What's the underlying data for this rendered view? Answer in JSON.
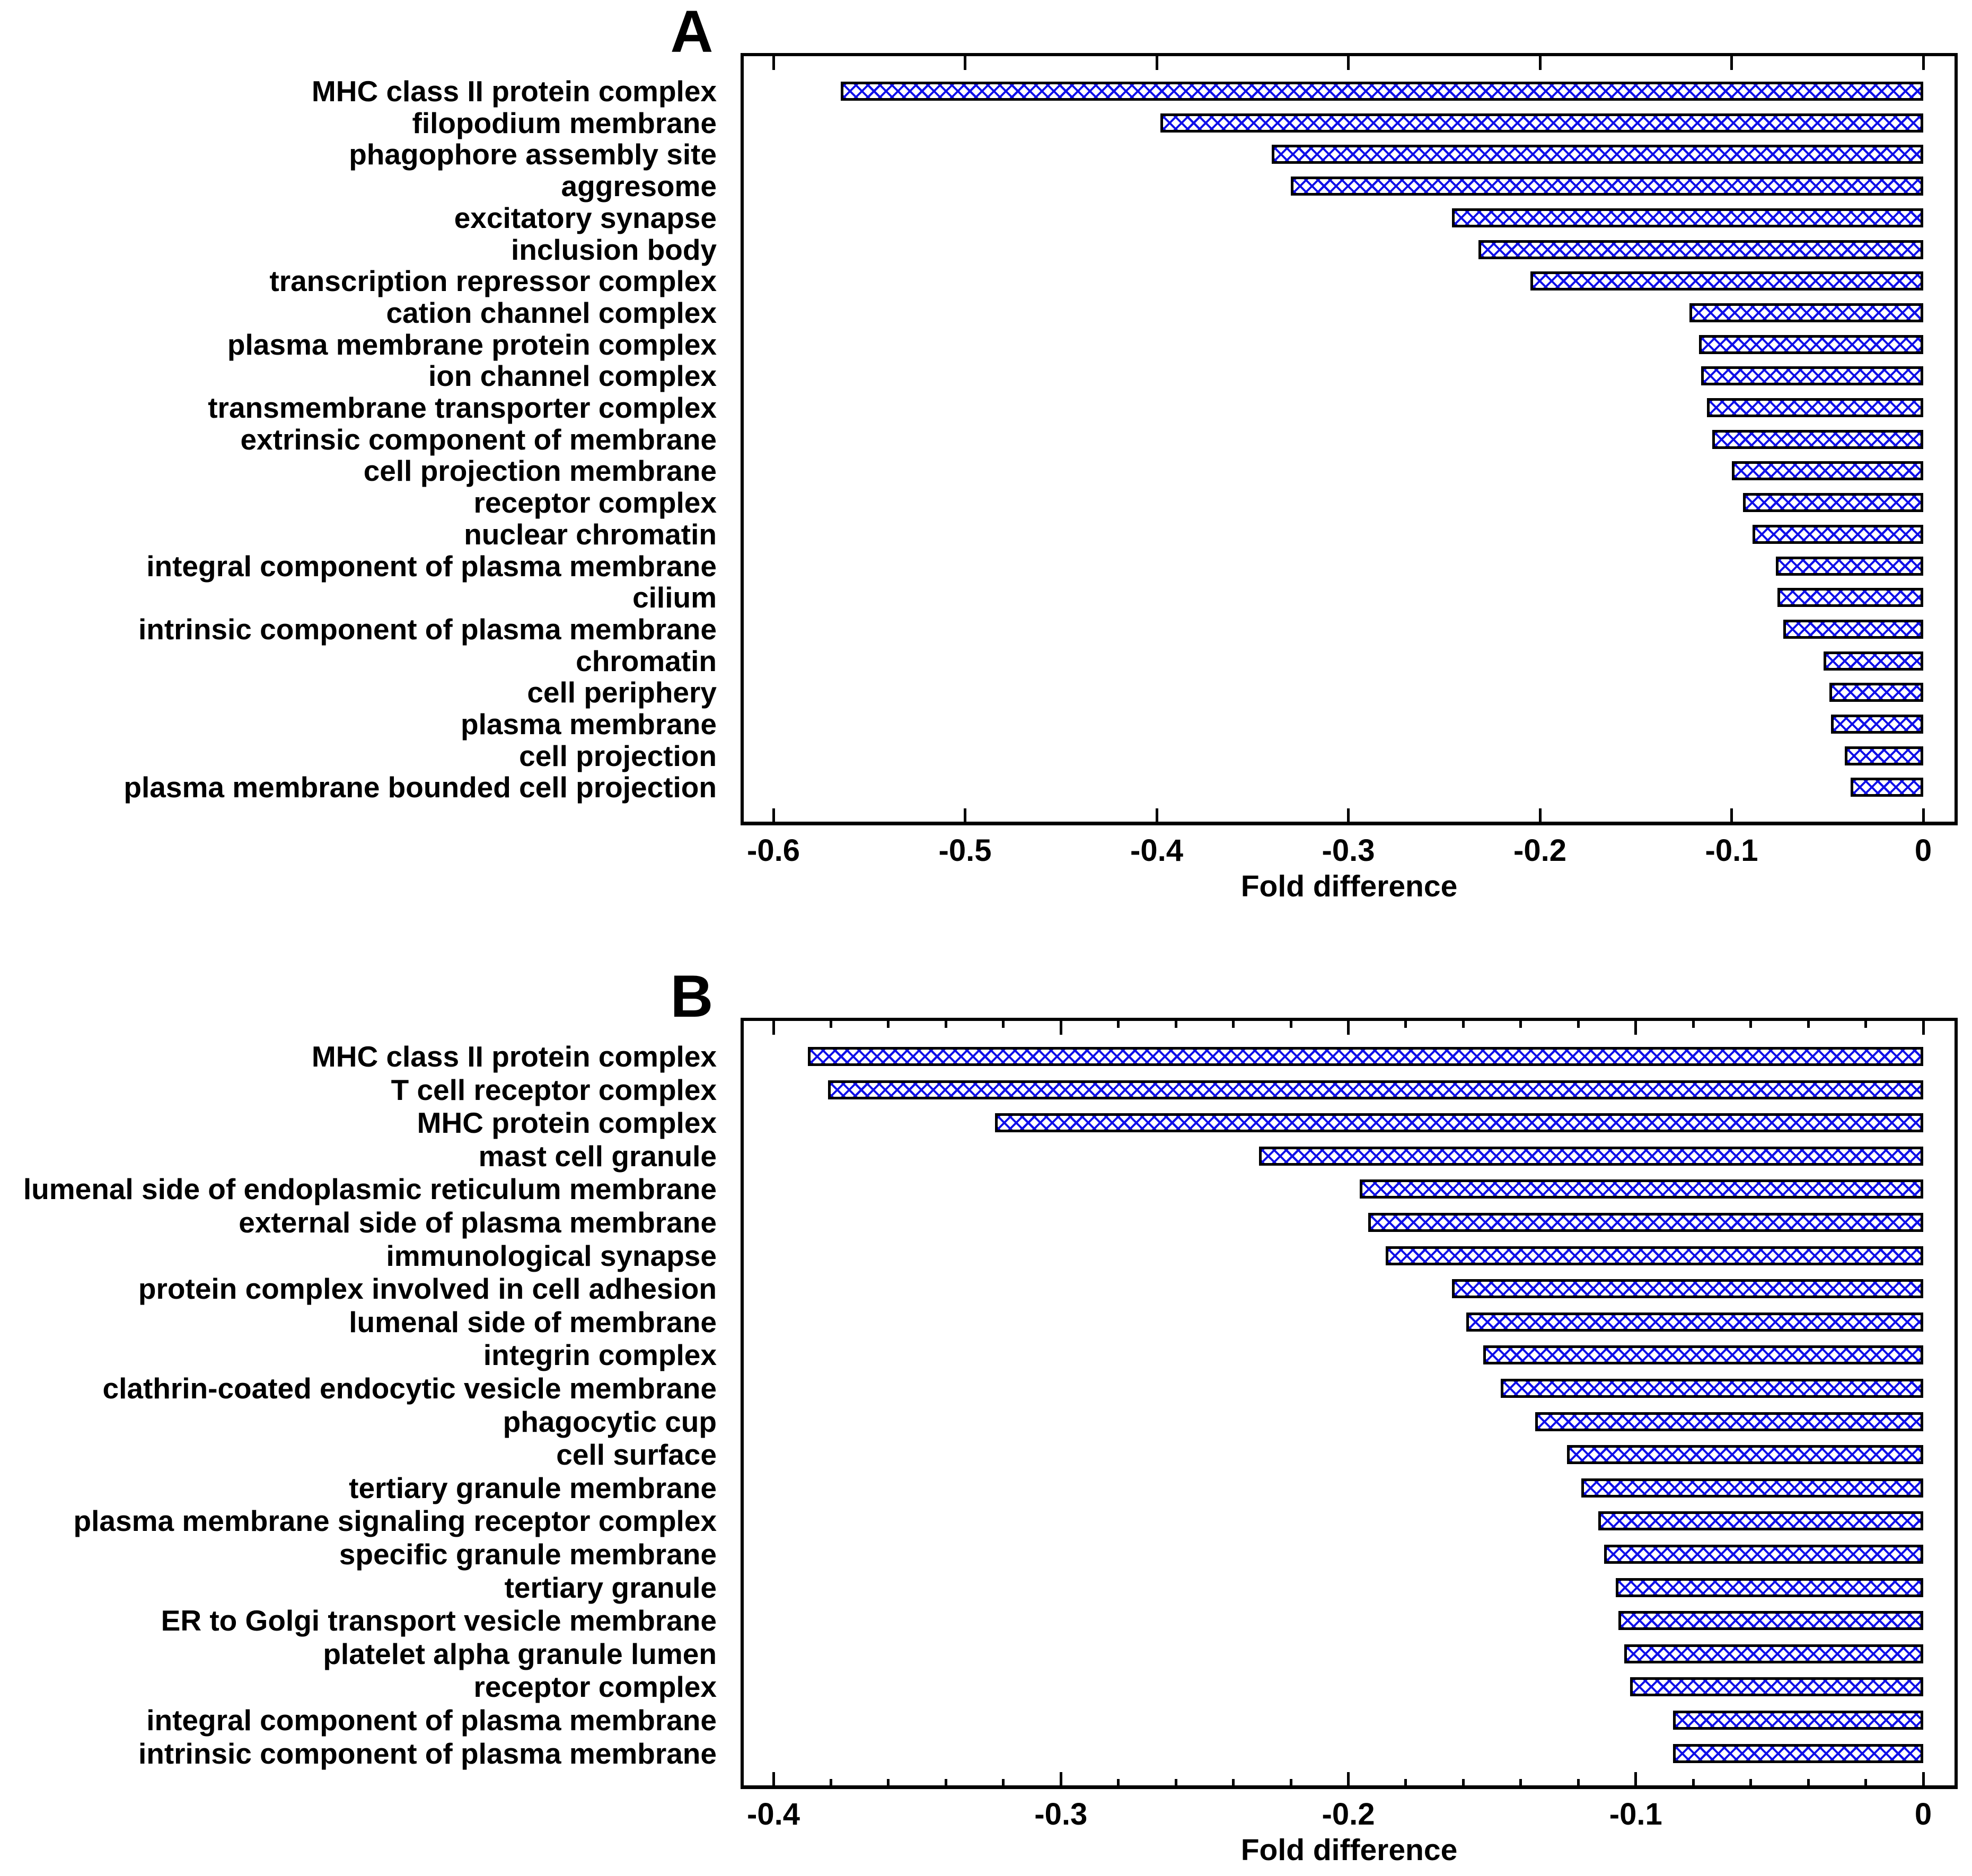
{
  "figure": {
    "background_color": "#ffffff",
    "axis_color": "#000000",
    "text_color": "#000000",
    "bar_border_color": "#000000",
    "bar_fill": "white with blue diagonal crosshatch pattern",
    "bar_pattern_color": "#0f0fe8"
  },
  "chart_data": [
    {
      "type": "bar",
      "orientation": "horizontal",
      "panel_label": "A",
      "title": "",
      "xlabel": "Fold difference",
      "ylabel": "",
      "xlim": [
        -0.6,
        0
      ],
      "grid": false,
      "legend": null,
      "x_major_ticks": [
        -0.6,
        -0.5,
        -0.4,
        -0.3,
        -0.2,
        -0.1,
        0
      ],
      "x_tick_labels": [
        "-0.6",
        "-0.5",
        "-0.4",
        "-0.3",
        "-0.2",
        "-0.1",
        "0"
      ],
      "x_minor_tick_step": null,
      "categories": [
        "MHC class II protein complex",
        "filopodium membrane",
        "phagophore assembly site",
        "aggresome",
        "excitatory synapse",
        "inclusion body",
        "transcription repressor complex",
        "cation channel complex",
        "plasma membrane protein complex",
        "ion channel complex",
        "transmembrane transporter complex",
        "extrinsic component of membrane",
        "cell projection membrane",
        "receptor complex",
        "nuclear chromatin",
        "integral component of plasma membrane",
        "cilium",
        "intrinsic component of plasma membrane",
        "chromatin",
        "cell periphery",
        "plasma membrane",
        "cell projection",
        "plasma membrane bounded cell projection"
      ],
      "values": [
        -0.565,
        -0.398,
        -0.34,
        -0.33,
        -0.246,
        -0.232,
        -0.205,
        -0.122,
        -0.117,
        -0.116,
        -0.113,
        -0.11,
        -0.1,
        -0.094,
        -0.089,
        -0.077,
        -0.076,
        -0.073,
        -0.052,
        -0.049,
        -0.048,
        -0.041,
        -0.038
      ]
    },
    {
      "type": "bar",
      "orientation": "horizontal",
      "panel_label": "B",
      "title": "",
      "xlabel": "Fold difference",
      "ylabel": "",
      "xlim": [
        -0.4,
        0
      ],
      "grid": false,
      "legend": null,
      "x_major_ticks": [
        -0.4,
        -0.3,
        -0.2,
        -0.1,
        0
      ],
      "x_tick_labels": [
        "-0.4",
        "-0.3",
        "-0.2",
        "-0.1",
        "0"
      ],
      "x_minor_tick_step": 0.02,
      "categories": [
        "MHC class II protein complex",
        "T cell receptor complex",
        "MHC protein complex",
        "mast cell granule",
        "lumenal side of endoplasmic reticulum membrane",
        "external side of plasma membrane",
        "immunological synapse",
        "protein complex involved in cell adhesion",
        "lumenal side of membrane",
        "integrin complex",
        "clathrin-coated endocytic vesicle membrane",
        "phagocytic cup",
        "cell surface",
        "tertiary granule membrane",
        "plasma membrane signaling receptor complex",
        "specific granule membrane",
        "tertiary granule",
        "ER to Golgi transport vesicle membrane",
        "platelet alpha granule lumen",
        "receptor complex",
        "integral component of plasma membrane",
        "intrinsic component of plasma membrane"
      ],
      "values": [
        -0.388,
        -0.381,
        -0.323,
        -0.231,
        -0.196,
        -0.193,
        -0.187,
        -0.164,
        -0.159,
        -0.153,
        -0.147,
        -0.135,
        -0.124,
        -0.119,
        -0.113,
        -0.111,
        -0.107,
        -0.106,
        -0.104,
        -0.102,
        -0.087,
        -0.087
      ]
    }
  ]
}
